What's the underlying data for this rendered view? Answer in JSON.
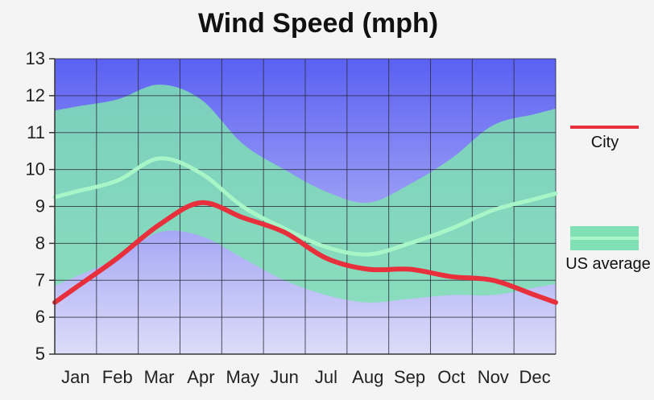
{
  "chart_data": {
    "type": "line",
    "title": "Wind Speed (mph)",
    "xlabel": "",
    "ylabel": "",
    "categories": [
      "Jan",
      "Feb",
      "Mar",
      "Apr",
      "May",
      "Jun",
      "Jul",
      "Aug",
      "Sep",
      "Oct",
      "Nov",
      "Dec"
    ],
    "ylim": [
      5,
      13
    ],
    "yticks": [
      5,
      6,
      7,
      8,
      9,
      10,
      11,
      12,
      13
    ],
    "grid": true,
    "legend_position": "right",
    "series": [
      {
        "name": "City",
        "type": "line",
        "color": "#e8303c",
        "values": [
          6.8,
          7.6,
          8.5,
          9.1,
          8.7,
          8.3,
          7.6,
          7.3,
          7.3,
          7.1,
          7.0,
          6.6
        ]
      },
      {
        "name": "US average",
        "type": "band",
        "color": "#7fe0b3",
        "mean": [
          9.4,
          9.7,
          10.3,
          9.9,
          9.0,
          8.4,
          7.9,
          7.7,
          8.0,
          8.4,
          8.9,
          9.2
        ],
        "upper": [
          11.7,
          11.9,
          12.3,
          11.9,
          10.7,
          10.0,
          9.4,
          9.1,
          9.6,
          10.3,
          11.2,
          11.5
        ],
        "lower": [
          7.1,
          7.6,
          8.3,
          8.2,
          7.6,
          7.0,
          6.6,
          6.4,
          6.5,
          6.6,
          6.6,
          6.8
        ]
      }
    ],
    "colors": {
      "plot_top": "#5a60f2",
      "plot_bottom": "#dcdcf8",
      "grid": "#2b2b3a",
      "band": "#7fe0b3",
      "us_line": "#a8f5c8",
      "city_line": "#e8303c"
    }
  }
}
